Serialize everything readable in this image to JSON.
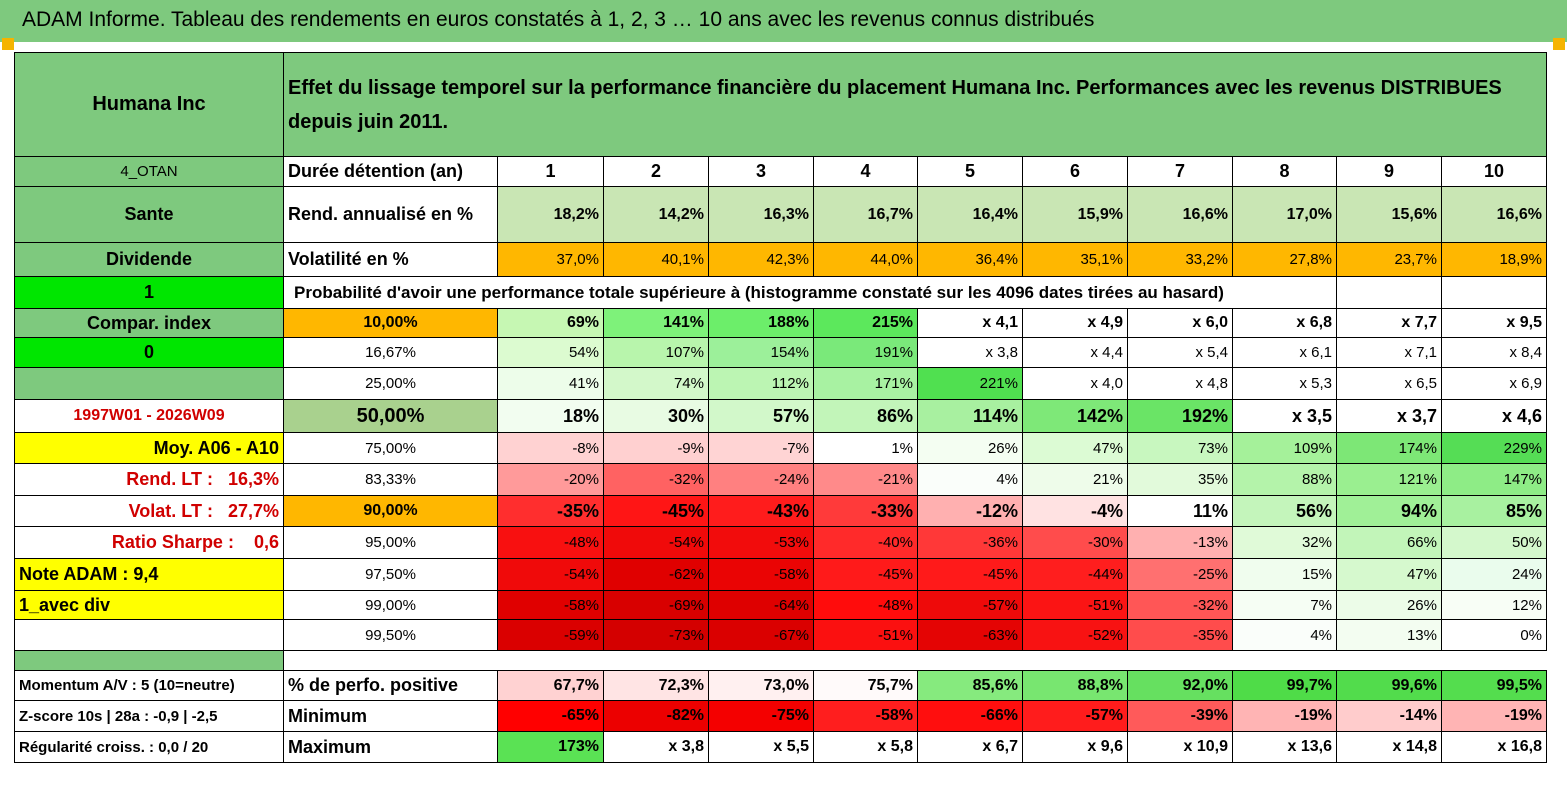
{
  "title": "ADAM Informe. Tableau des rendements en euros constatés à 1, 2, 3 … 10 ans avec les revenus connus distribués",
  "header": {
    "name": "Humana Inc",
    "description": "Effet du lissage temporel sur la performance financière du placement Humana Inc. Performances avec les revenus DISTRIBUES depuis juin 2011."
  },
  "colors": {
    "title_green": "#7ec97e",
    "rend_green": "#c9e6b4",
    "orange": "#ffb700",
    "bright_green": "#00e600",
    "yellow": "#ffff00",
    "red_text": "#d00000"
  },
  "left": {
    "code": "4_OTAN",
    "sector": "Sante",
    "type": "Dividende",
    "flag1": "1",
    "compar_label": "Compar. index",
    "flag0": "0",
    "period": "1997W01 - 2026W09",
    "moy": "Moy. A06 - A10",
    "rend_lt_label": "Rend. LT :",
    "rend_lt": "16,3%",
    "volat_lt_label": "Volat. LT :",
    "volat_lt": "27,7%",
    "sharpe_label": "Ratio Sharpe :",
    "sharpe": "0,6",
    "note": "Note ADAM : 9,4",
    "avec_div": "1_avec div",
    "momentum": "Momentum A/V : 5 (10=neutre)",
    "zscore": "Z-score 10s | 28a : -0,9 | -2,5",
    "regularite": "Régularité croiss. : 0,0 / 20"
  },
  "labels": {
    "duree": "Durée détention (an)",
    "rend": "Rend. annualisé en %",
    "vol": "Volatilité en %",
    "proba": "Probabilité d'avoir une performance totale supérieure à (histogramme constaté sur les 4096 dates tirées au hasard)",
    "pos": "% de perfo. positive",
    "min": "Minimum",
    "max": "Maximum"
  },
  "years": [
    "1",
    "2",
    "3",
    "4",
    "5",
    "6",
    "7",
    "8",
    "9",
    "10"
  ],
  "rend": [
    "18,2%",
    "14,2%",
    "16,3%",
    "16,7%",
    "16,4%",
    "15,9%",
    "16,6%",
    "17,0%",
    "15,6%",
    "16,6%"
  ],
  "vol": [
    "37,0%",
    "40,1%",
    "42,3%",
    "44,0%",
    "36,4%",
    "35,1%",
    "33,2%",
    "27,8%",
    "23,7%",
    "18,9%"
  ],
  "proba_rows": [
    {
      "p": "10,00%",
      "v": [
        "69%",
        "141%",
        "188%",
        "215%",
        "x 4,1",
        "x 4,9",
        "x 6,0",
        "x 6,8",
        "x 7,7",
        "x 9,5"
      ]
    },
    {
      "p": "16,67%",
      "v": [
        "54%",
        "107%",
        "154%",
        "191%",
        "x 3,8",
        "x 4,4",
        "x 5,4",
        "x 6,1",
        "x 7,1",
        "x 8,4"
      ]
    },
    {
      "p": "25,00%",
      "v": [
        "41%",
        "74%",
        "112%",
        "171%",
        "221%",
        "x 4,0",
        "x 4,8",
        "x 5,3",
        "x 6,5",
        "x 6,9"
      ]
    },
    {
      "p": "50,00%",
      "v": [
        "18%",
        "30%",
        "57%",
        "86%",
        "114%",
        "142%",
        "192%",
        "x 3,5",
        "x 3,7",
        "x 4,6"
      ]
    },
    {
      "p": "75,00%",
      "v": [
        "-8%",
        "-9%",
        "-7%",
        "1%",
        "26%",
        "47%",
        "73%",
        "109%",
        "174%",
        "229%"
      ]
    },
    {
      "p": "83,33%",
      "v": [
        "-20%",
        "-32%",
        "-24%",
        "-21%",
        "4%",
        "21%",
        "35%",
        "88%",
        "121%",
        "147%"
      ]
    },
    {
      "p": "90,00%",
      "v": [
        "-35%",
        "-45%",
        "-43%",
        "-33%",
        "-12%",
        "-4%",
        "11%",
        "56%",
        "94%",
        "85%"
      ]
    },
    {
      "p": "95,00%",
      "v": [
        "-48%",
        "-54%",
        "-53%",
        "-40%",
        "-36%",
        "-30%",
        "-13%",
        "32%",
        "66%",
        "50%"
      ]
    },
    {
      "p": "97,50%",
      "v": [
        "-54%",
        "-62%",
        "-58%",
        "-45%",
        "-45%",
        "-44%",
        "-25%",
        "15%",
        "47%",
        "24%"
      ]
    },
    {
      "p": "99,00%",
      "v": [
        "-58%",
        "-69%",
        "-64%",
        "-48%",
        "-57%",
        "-51%",
        "-32%",
        "7%",
        "26%",
        "12%"
      ]
    },
    {
      "p": "99,50%",
      "v": [
        "-59%",
        "-73%",
        "-67%",
        "-51%",
        "-63%",
        "-52%",
        "-35%",
        "4%",
        "13%",
        "0%"
      ]
    }
  ],
  "pos": [
    "67,7%",
    "72,3%",
    "73,0%",
    "75,7%",
    "85,6%",
    "88,8%",
    "92,0%",
    "99,7%",
    "99,6%",
    "99,5%"
  ],
  "min": [
    "-65%",
    "-82%",
    "-75%",
    "-58%",
    "-66%",
    "-57%",
    "-39%",
    "-19%",
    "-14%",
    "-19%"
  ],
  "max": [
    "173%",
    "x 3,8",
    "x 5,5",
    "x 5,8",
    "x 6,7",
    "x 9,6",
    "x 10,9",
    "x 13,6",
    "x 14,8",
    "x 16,8"
  ],
  "proba_colors": [
    [
      "#c6f7b3",
      "#7ef27a",
      "#6cee6a",
      "#5ce85c",
      "#fff",
      "#fff",
      "#fff",
      "#fff",
      "#fff",
      "#fff"
    ],
    [
      "#dcfbd0",
      "#b8f5ac",
      "#9cf09a",
      "#7ae97a",
      "#fff",
      "#fff",
      "#fff",
      "#fff",
      "#fff",
      "#fff"
    ],
    [
      "#edfdea",
      "#d3f8ca",
      "#bcf5b3",
      "#a8f2a2",
      "#50e050",
      "#fff",
      "#fff",
      "#fff",
      "#fff",
      "#fff"
    ],
    [
      "#f2fdf0",
      "#e8fbe3",
      "#d2f8ca",
      "#c2f5b9",
      "#a8f0a0",
      "#7ee878",
      "#6ae466",
      "#fff",
      "#fff",
      "#fff"
    ],
    [
      "#ffd2d2",
      "#ffd0d0",
      "#ffd4d4",
      "#ffffff",
      "#f4fef2",
      "#dcfbd4",
      "#c8f7bf",
      "#a5f19a",
      "#7de776",
      "#55dd55"
    ],
    [
      "#ff9a9a",
      "#ff6262",
      "#ff8080",
      "#ff8a8a",
      "#fafefa",
      "#eefcea",
      "#e2fadb",
      "#b4f3aa",
      "#9aef90",
      "#8eec86"
    ],
    [
      "#ff2e2e",
      "#ff1515",
      "#ff1c1c",
      "#ff3a3a",
      "#ffb0b0",
      "#ffe2e2",
      "#fff",
      "#c4f5bb",
      "#a0f097",
      "#a8f1a0"
    ],
    [
      "#f81010",
      "#f00a0a",
      "#f20c0c",
      "#ff2a2a",
      "#ff3838",
      "#ff4c4c",
      "#ffb0b0",
      "#e0fad8",
      "#c2f5b9",
      "#d4f8cc"
    ],
    [
      "#f00a0a",
      "#e00000",
      "#ea0404",
      "#ff1a1a",
      "#ff1a1a",
      "#ff1e1e",
      "#ff7070",
      "#f0fdee",
      "#d6f9ce",
      "#eafced"
    ],
    [
      "#e00000",
      "#d80000",
      "#de0000",
      "#ff0c0c",
      "#ee0a0a",
      "#fb1414",
      "#ff5656",
      "#f6fef4",
      "#ecfce8",
      "#f8fef6"
    ],
    [
      "#da0000",
      "#d40000",
      "#da0000",
      "#fb1010",
      "#e40404",
      "#f81212",
      "#ff4c4c",
      "#fafefa",
      "#f3fdf1",
      "#fff"
    ]
  ],
  "pos_colors": [
    "#ffd2d2",
    "#ffe4e4",
    "#fff0f0",
    "#fffafa",
    "#86ea7e",
    "#78e670",
    "#66e060",
    "#4fdc48",
    "#52dc4c",
    "#54dd4e"
  ],
  "min_colors": [
    "#ff0000",
    "#ec0000",
    "#f40000",
    "#ff1e1e",
    "#ff0e0e",
    "#ff1c1c",
    "#ff5a5a",
    "#ffb4b4",
    "#ffcccc",
    "#ffb4b4"
  ],
  "max_colors": [
    "#5ae254",
    "#fff",
    "#fff",
    "#fff",
    "#fff",
    "#fff",
    "#fff",
    "#fff",
    "#fff",
    "#fff"
  ]
}
